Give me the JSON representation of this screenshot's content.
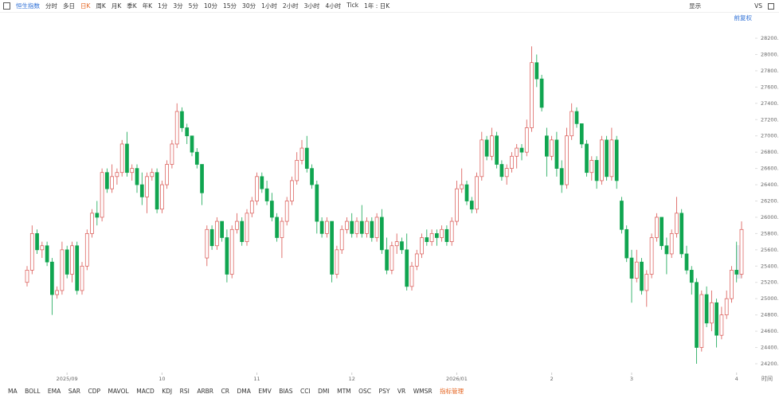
{
  "toolbar": {
    "instrument": "恒生指数",
    "periods": [
      "分时",
      "多日",
      "日K",
      "周K",
      "月K",
      "季K",
      "年K",
      "1分",
      "3分",
      "5分",
      "10分",
      "15分",
      "30分",
      "1小时",
      "2小时",
      "3小时",
      "4小时",
      "Tick"
    ],
    "selected": "日K",
    "range": "1年 : 日K",
    "display": "显示",
    "vs": "VS",
    "adjust": "前复权"
  },
  "indicators": [
    "MA",
    "BOLL",
    "EMA",
    "SAR",
    "CDP",
    "MAVOL",
    "MACD",
    "KDJ",
    "RSI",
    "ARBR",
    "CR",
    "DMA",
    "EMV",
    "BIAS",
    "CCI",
    "DMI",
    "MTM",
    "OSC",
    "PSY",
    "VR",
    "WMSR",
    "指标管理"
  ],
  "chart_data": {
    "type": "candlestick",
    "xlabel": "时间",
    "up_color": "#d9534f",
    "down_color": "#10a550",
    "grid": false,
    "ylim": [
      24100,
      28350
    ],
    "yticks": [
      {
        "value": 24200,
        "label": "24200.00"
      },
      {
        "value": 24400,
        "label": "24400.00"
      },
      {
        "value": 24600,
        "label": "24600.00"
      },
      {
        "value": 24800,
        "label": "24800.00"
      },
      {
        "value": 25000,
        "label": "25000.00"
      },
      {
        "value": 25200,
        "label": "25200.00"
      },
      {
        "value": 25400,
        "label": "25400.00"
      },
      {
        "value": 25600,
        "label": "25600.00"
      },
      {
        "value": 25800,
        "label": "25800.00"
      },
      {
        "value": 26000,
        "label": "26000.00"
      },
      {
        "value": 26200,
        "label": "26200.00"
      },
      {
        "value": 26400,
        "label": "26400.00"
      },
      {
        "value": 26600,
        "label": "26600.00"
      },
      {
        "value": 26800,
        "label": "26800.00"
      },
      {
        "value": 27000,
        "label": "27000.00"
      },
      {
        "value": 27200,
        "label": "27200.00"
      },
      {
        "value": 27400,
        "label": "27400.00"
      },
      {
        "value": 27600,
        "label": "27600.00"
      },
      {
        "value": 27800,
        "label": "27800.00"
      },
      {
        "value": 28000,
        "label": "28000.00"
      },
      {
        "value": 28200,
        "label": "28200.00"
      }
    ],
    "categories": [
      null,
      null,
      null,
      null,
      null,
      null,
      null,
      null,
      "2025/09",
      null,
      null,
      null,
      null,
      null,
      null,
      null,
      null,
      null,
      null,
      null,
      null,
      null,
      null,
      null,
      null,
      null,
      null,
      "10",
      null,
      null,
      null,
      null,
      null,
      null,
      null,
      null,
      null,
      null,
      null,
      null,
      null,
      null,
      null,
      null,
      null,
      null,
      "11",
      null,
      null,
      null,
      null,
      null,
      null,
      null,
      null,
      null,
      null,
      null,
      null,
      null,
      null,
      null,
      null,
      null,
      null,
      "12",
      null,
      null,
      null,
      null,
      null,
      null,
      null,
      null,
      null,
      null,
      null,
      null,
      null,
      null,
      null,
      null,
      null,
      null,
      null,
      null,
      "2026/01",
      null,
      null,
      null,
      null,
      null,
      null,
      null,
      null,
      null,
      null,
      null,
      null,
      null,
      null,
      null,
      null,
      null,
      null,
      "2",
      null,
      null,
      null,
      null,
      null,
      null,
      null,
      null,
      null,
      null,
      null,
      null,
      null,
      null,
      null,
      "3",
      null,
      null,
      null,
      null,
      null,
      null,
      null,
      null,
      null,
      null,
      null,
      null,
      null,
      null,
      null,
      null,
      null,
      null,
      null,
      null,
      "4",
      null
    ],
    "ohlc": [
      [
        25200,
        25400,
        25150,
        25350
      ],
      [
        25350,
        25900,
        25300,
        25800
      ],
      [
        25800,
        25850,
        25550,
        25600
      ],
      [
        25600,
        25700,
        25500,
        25650
      ],
      [
        25650,
        25700,
        25400,
        25450
      ],
      [
        25450,
        25500,
        24800,
        25050
      ],
      [
        25050,
        25150,
        25000,
        25100
      ],
      [
        25100,
        25700,
        25050,
        25600
      ],
      [
        25600,
        25650,
        25250,
        25300
      ],
      [
        25300,
        25700,
        25200,
        25650
      ],
      [
        25650,
        25700,
        25050,
        25100
      ],
      [
        25100,
        25450,
        25050,
        25400
      ],
      [
        25400,
        25850,
        25350,
        25800
      ],
      [
        25800,
        26100,
        25750,
        26050
      ],
      [
        26050,
        26200,
        25900,
        26000
      ],
      [
        26000,
        26600,
        25950,
        26550
      ],
      [
        26550,
        26600,
        26300,
        26350
      ],
      [
        26350,
        26650,
        26300,
        26500
      ],
      [
        26500,
        26600,
        26400,
        26550
      ],
      [
        26550,
        26950,
        26500,
        26900
      ],
      [
        26900,
        27050,
        26500,
        26550
      ],
      [
        26550,
        26650,
        26450,
        26600
      ],
      [
        26600,
        26650,
        26300,
        26400
      ],
      [
        26400,
        26550,
        26150,
        26250
      ],
      [
        26250,
        26550,
        26050,
        26500
      ],
      [
        26500,
        26600,
        26450,
        26550
      ],
      [
        26550,
        26600,
        26050,
        26100
      ],
      [
        26100,
        26450,
        26050,
        26400
      ],
      [
        26400,
        26700,
        26350,
        26650
      ],
      [
        26650,
        26950,
        26600,
        26900
      ],
      [
        26900,
        27400,
        26850,
        27300
      ],
      [
        27300,
        27350,
        27050,
        27100
      ],
      [
        27100,
        27150,
        26900,
        27000
      ],
      [
        27000,
        27000,
        26750,
        26800
      ],
      [
        26800,
        26850,
        26600,
        26650
      ],
      [
        26650,
        26650,
        26150,
        26300
      ],
      [
        25500,
        25900,
        25400,
        25850
      ],
      [
        25850,
        25900,
        25600,
        25650
      ],
      [
        25650,
        26000,
        25600,
        25950
      ],
      [
        25950,
        25950,
        25700,
        25750
      ],
      [
        25750,
        25850,
        25200,
        25300
      ],
      [
        25300,
        25900,
        25250,
        25850
      ],
      [
        25850,
        26050,
        25800,
        25950
      ],
      [
        25950,
        26000,
        25650,
        25700
      ],
      [
        25700,
        26100,
        25650,
        26050
      ],
      [
        26050,
        26250,
        26000,
        26200
      ],
      [
        26200,
        26550,
        26150,
        26500
      ],
      [
        26500,
        26550,
        26300,
        26350
      ],
      [
        26350,
        26450,
        26150,
        26200
      ],
      [
        26200,
        26300,
        25950,
        26000
      ],
      [
        26000,
        26050,
        25700,
        25750
      ],
      [
        25750,
        26000,
        25500,
        25950
      ],
      [
        25950,
        26250,
        25900,
        26200
      ],
      [
        26200,
        26500,
        26150,
        26450
      ],
      [
        26450,
        26800,
        26400,
        26700
      ],
      [
        26700,
        26950,
        26650,
        26850
      ],
      [
        26850,
        27000,
        26550,
        26600
      ],
      [
        26600,
        26650,
        26350,
        26400
      ],
      [
        26400,
        26450,
        25800,
        25950
      ],
      [
        25950,
        26000,
        25750,
        25800
      ],
      [
        25800,
        26000,
        25750,
        25950
      ],
      [
        25950,
        25950,
        25200,
        25300
      ],
      [
        25300,
        25650,
        25250,
        25600
      ],
      [
        25600,
        25900,
        25550,
        25850
      ],
      [
        25850,
        26000,
        25800,
        25950
      ],
      [
        25950,
        26050,
        25750,
        25800
      ],
      [
        25800,
        26000,
        25750,
        25950
      ],
      [
        25950,
        26150,
        25750,
        25800
      ],
      [
        25800,
        26000,
        25750,
        25950
      ],
      [
        25950,
        26000,
        25700,
        25750
      ],
      [
        25750,
        26050,
        25700,
        26000
      ],
      [
        26000,
        26100,
        25550,
        25600
      ],
      [
        25600,
        25750,
        25300,
        25350
      ],
      [
        25350,
        25700,
        25300,
        25650
      ],
      [
        25650,
        25800,
        25550,
        25700
      ],
      [
        25700,
        25750,
        25550,
        25600
      ],
      [
        25600,
        25800,
        25100,
        25150
      ],
      [
        25150,
        25450,
        25100,
        25400
      ],
      [
        25400,
        25600,
        25350,
        25550
      ],
      [
        25550,
        25800,
        25500,
        25750
      ],
      [
        25750,
        25850,
        25650,
        25700
      ],
      [
        25700,
        25850,
        25650,
        25800
      ],
      [
        25800,
        25850,
        25650,
        25750
      ],
      [
        25750,
        25900,
        25700,
        25850
      ],
      [
        25850,
        25900,
        25650,
        25700
      ],
      [
        25700,
        26000,
        25650,
        25950
      ],
      [
        25950,
        26450,
        25900,
        26350
      ],
      [
        26350,
        26600,
        26300,
        26400
      ],
      [
        26400,
        26450,
        26150,
        26200
      ],
      [
        26200,
        26250,
        26050,
        26100
      ],
      [
        26100,
        26550,
        26050,
        26500
      ],
      [
        26500,
        27050,
        26450,
        26950
      ],
      [
        26950,
        27000,
        26700,
        26750
      ],
      [
        26750,
        27100,
        26700,
        27000
      ],
      [
        27000,
        27050,
        26600,
        26650
      ],
      [
        26650,
        26700,
        26450,
        26500
      ],
      [
        26500,
        26650,
        26400,
        26600
      ],
      [
        26600,
        26800,
        26550,
        26750
      ],
      [
        26750,
        26900,
        26600,
        26850
      ],
      [
        26850,
        26900,
        26700,
        26800
      ],
      [
        26800,
        27200,
        26750,
        27100
      ],
      [
        27100,
        28100,
        27050,
        27900
      ],
      [
        27900,
        28000,
        27600,
        27700
      ],
      [
        27700,
        27750,
        27300,
        27350
      ],
      [
        27000,
        27100,
        26500,
        26750
      ],
      [
        26750,
        27000,
        26700,
        26950
      ],
      [
        26950,
        27050,
        26500,
        26600
      ],
      [
        26600,
        26700,
        26300,
        26400
      ],
      [
        26400,
        27100,
        26350,
        27000
      ],
      [
        27000,
        27400,
        26950,
        27300
      ],
      [
        27300,
        27350,
        27100,
        27150
      ],
      [
        27150,
        27150,
        26850,
        26900
      ],
      [
        26900,
        26950,
        26500,
        26550
      ],
      [
        26550,
        26750,
        26450,
        26700
      ],
      [
        26700,
        26750,
        26350,
        26450
      ],
      [
        26450,
        27000,
        26400,
        26950
      ],
      [
        26950,
        27000,
        26450,
        26500
      ],
      [
        26500,
        27100,
        26450,
        26950
      ],
      [
        26950,
        27000,
        26350,
        26450
      ],
      [
        26200,
        26250,
        25800,
        25850
      ],
      [
        25850,
        25900,
        25450,
        25500
      ],
      [
        25500,
        25600,
        24950,
        25250
      ],
      [
        25250,
        25600,
        25200,
        25450
      ],
      [
        25450,
        25500,
        25050,
        25100
      ],
      [
        25100,
        25350,
        24900,
        25300
      ],
      [
        25300,
        25800,
        25250,
        25750
      ],
      [
        25750,
        26050,
        25700,
        26000
      ],
      [
        26000,
        26000,
        25600,
        25650
      ],
      [
        25650,
        25750,
        25300,
        25550
      ],
      [
        25550,
        25850,
        25500,
        25800
      ],
      [
        25800,
        26250,
        25750,
        26050
      ],
      [
        26050,
        26100,
        25500,
        25550
      ],
      [
        25550,
        25650,
        25300,
        25350
      ],
      [
        25350,
        25400,
        25050,
        25200
      ],
      [
        25200,
        25250,
        24200,
        24400
      ],
      [
        24400,
        25100,
        24350,
        25050
      ],
      [
        25050,
        25150,
        24650,
        24700
      ],
      [
        24700,
        25100,
        24600,
        24950
      ],
      [
        24950,
        25000,
        24400,
        24550
      ],
      [
        24550,
        24900,
        24500,
        24800
      ],
      [
        24800,
        25100,
        24750,
        25000
      ],
      [
        25000,
        25400,
        24950,
        25350
      ],
      [
        25350,
        25700,
        25200,
        25300
      ],
      [
        25300,
        25950,
        25250,
        25850
      ]
    ]
  }
}
